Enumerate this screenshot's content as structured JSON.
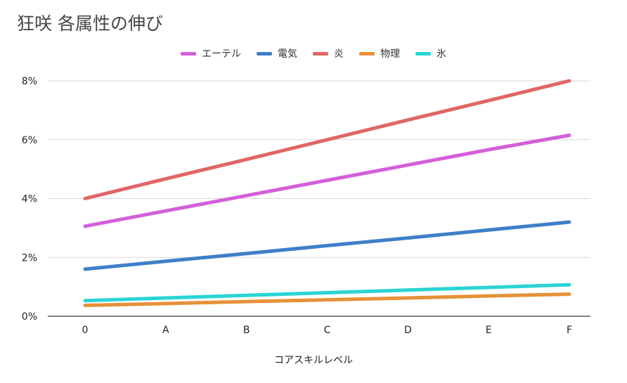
{
  "chart_data": {
    "type": "line",
    "title": "狂咲 各属性の伸び",
    "xlabel": "コアスキルレベル",
    "ylabel": "",
    "categories": [
      "0",
      "A",
      "B",
      "C",
      "D",
      "E",
      "F"
    ],
    "ylim": [
      0,
      8
    ],
    "yticks": [
      0,
      2,
      4,
      6,
      8
    ],
    "ytick_labels": [
      "0%",
      "2%",
      "4%",
      "6%",
      "8%"
    ],
    "grid": true,
    "legend_position": "top",
    "series": [
      {
        "name": "エーテル",
        "color": "#d35fd9",
        "values": [
          3.06,
          3.58,
          4.1,
          4.62,
          5.14,
          5.66,
          6.15
        ]
      },
      {
        "name": "電気",
        "color": "#3f7fc9",
        "values": [
          1.6,
          1.87,
          2.13,
          2.4,
          2.66,
          2.93,
          3.2
        ]
      },
      {
        "name": "炎",
        "color": "#e06666",
        "values": [
          4.0,
          4.67,
          5.33,
          6.0,
          6.67,
          7.33,
          8.0
        ]
      },
      {
        "name": "物理",
        "color": "#e69138",
        "values": [
          0.37,
          0.43,
          0.5,
          0.56,
          0.62,
          0.69,
          0.75
        ]
      },
      {
        "name": "氷",
        "color": "#2ad4d4",
        "values": [
          0.53,
          0.62,
          0.71,
          0.8,
          0.89,
          0.98,
          1.07
        ]
      }
    ]
  }
}
